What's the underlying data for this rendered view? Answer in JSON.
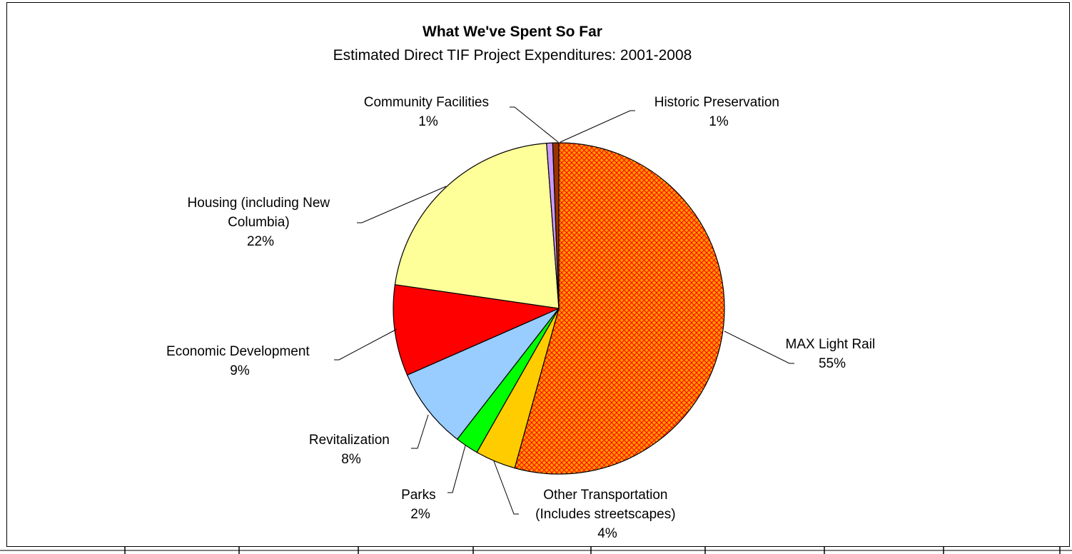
{
  "chart_data": {
    "type": "pie",
    "title": "What We've Spent So Far",
    "subtitle": "Estimated Direct TIF Project Expenditures:  2001-2008",
    "start_angle_deg": 0,
    "direction": "clockwise",
    "slices": [
      {
        "id": "max-light-rail",
        "label_lines": [
          "MAX Light Rail"
        ],
        "percent_label": "55%",
        "value": 55,
        "color": "#FF9900",
        "pattern": "crosshatch",
        "pattern_color": "#FF0000"
      },
      {
        "id": "other-transportation",
        "label_lines": [
          "Other Transportation",
          "(Includes streetscapes)"
        ],
        "percent_label": "4%",
        "value": 4,
        "color": "#FFCC00"
      },
      {
        "id": "parks",
        "label_lines": [
          "Parks"
        ],
        "percent_label": "2%",
        "value": 2.3,
        "color": "#00FF00"
      },
      {
        "id": "revitalization",
        "label_lines": [
          "Revitalization"
        ],
        "percent_label": "8%",
        "value": 8,
        "color": "#99CCFF"
      },
      {
        "id": "economic-development",
        "label_lines": [
          "Economic Development"
        ],
        "percent_label": "9%",
        "value": 9,
        "color": "#FF0000"
      },
      {
        "id": "housing",
        "label_lines": [
          "Housing (including New",
          "Columbia)"
        ],
        "percent_label": "22%",
        "value": 21.8,
        "color": "#FFFF99"
      },
      {
        "id": "community-facilities",
        "label_lines": [
          "Community Facilities"
        ],
        "percent_label": "1%",
        "value": 0.6,
        "color": "#CC99FF"
      },
      {
        "id": "historic-preservation",
        "label_lines": [
          "Historic Preservation"
        ],
        "percent_label": "1%",
        "value": 0.6,
        "color": "#993300"
      }
    ],
    "legend": "none"
  }
}
